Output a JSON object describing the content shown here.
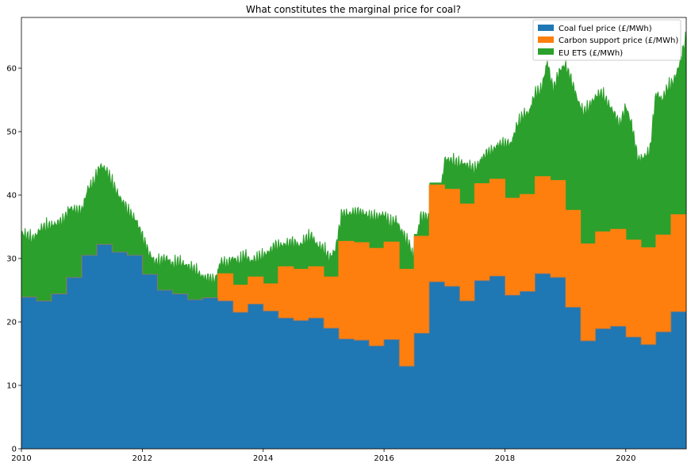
{
  "chart_data": {
    "type": "area",
    "stacked": true,
    "title": "What constitutes the marginal price for coal?",
    "xlabel": "",
    "ylabel": "",
    "xlim": [
      2010.0,
      2021.0
    ],
    "ylim": [
      0,
      68
    ],
    "x_ticks": [
      2010,
      2012,
      2014,
      2016,
      2018,
      2020
    ],
    "x_tick_labels": [
      "2010",
      "2012",
      "2014",
      "2016",
      "2018",
      "2020"
    ],
    "y_ticks": [
      0,
      10,
      20,
      30,
      40,
      50,
      60
    ],
    "y_tick_labels": [
      "0",
      "10",
      "20",
      "30",
      "40",
      "50",
      "60"
    ],
    "grid": false,
    "legend_position": "top-right",
    "step": "post",
    "quarters": [
      2010.0,
      2010.25,
      2010.5,
      2010.75,
      2011.0,
      2011.25,
      2011.5,
      2011.75,
      2012.0,
      2012.25,
      2012.5,
      2012.75,
      2013.0,
      2013.25,
      2013.5,
      2013.75,
      2014.0,
      2014.25,
      2014.5,
      2014.75,
      2015.0,
      2015.25,
      2015.5,
      2015.75,
      2016.0,
      2016.25,
      2016.5,
      2016.75,
      2017.0,
      2017.25,
      2017.5,
      2017.75,
      2018.0,
      2018.25,
      2018.5,
      2018.75,
      2019.0,
      2019.25,
      2019.5,
      2019.75,
      2020.0,
      2020.25,
      2020.5,
      2020.75,
      2021.0
    ],
    "coal_fuel_step": [
      23.9,
      23.3,
      24.4,
      27.0,
      30.5,
      32.2,
      31.0,
      30.5,
      27.5,
      25.0,
      24.4,
      23.5,
      23.8,
      23.3,
      21.5,
      22.8,
      21.7,
      20.6,
      20.2,
      20.6,
      19.0,
      17.3,
      17.1,
      16.2,
      17.2,
      13.0,
      18.2,
      26.3,
      25.6,
      23.3,
      26.5,
      27.2,
      24.2,
      24.8,
      27.6,
      27.0,
      22.3,
      17.0,
      18.9,
      19.3,
      17.6,
      16.4,
      18.4,
      21.6,
      21.6
    ],
    "carbon_support_step": [
      0,
      0,
      0,
      0,
      0,
      0,
      0,
      0,
      0,
      0,
      0,
      0,
      0,
      4.3,
      4.3,
      4.3,
      4.3,
      8.1,
      8.1,
      8.1,
      8.1,
      15.4,
      15.4,
      15.4,
      15.4,
      15.3,
      15.3,
      15.3,
      15.3,
      15.3,
      15.3,
      15.3,
      15.3,
      15.3,
      15.3,
      15.3,
      15.3,
      15.3,
      15.3,
      15.3,
      15.3,
      15.3,
      15.3,
      15.3,
      15.3
    ],
    "total_price_x": [
      2010.0,
      2010.1,
      2010.2,
      2010.3,
      2010.4,
      2010.5,
      2010.6,
      2010.7,
      2010.8,
      2010.9,
      2011.0,
      2011.1,
      2011.2,
      2011.3,
      2011.4,
      2011.5,
      2011.6,
      2011.7,
      2011.8,
      2011.9,
      2012.0,
      2012.1,
      2012.2,
      2012.3,
      2012.4,
      2012.5,
      2012.6,
      2012.7,
      2012.8,
      2012.9,
      2013.0,
      2013.1,
      2013.2,
      2013.3,
      2013.4,
      2013.5,
      2013.6,
      2013.7,
      2013.8,
      2013.9,
      2014.0,
      2014.1,
      2014.2,
      2014.3,
      2014.4,
      2014.5,
      2014.6,
      2014.7,
      2014.8,
      2014.9,
      2015.0,
      2015.1,
      2015.2,
      2015.3,
      2015.4,
      2015.5,
      2015.6,
      2015.7,
      2015.8,
      2015.9,
      2016.0,
      2016.1,
      2016.2,
      2016.3,
      2016.4,
      2016.5,
      2016.6,
      2016.7,
      2016.8,
      2016.9,
      2017.0,
      2017.1,
      2017.2,
      2017.3,
      2017.4,
      2017.5,
      2017.6,
      2017.7,
      2017.8,
      2017.9,
      2018.0,
      2018.1,
      2018.2,
      2018.3,
      2018.4,
      2018.5,
      2018.6,
      2018.7,
      2018.8,
      2018.9,
      2019.0,
      2019.1,
      2019.2,
      2019.3,
      2019.4,
      2019.5,
      2019.6,
      2019.7,
      2019.8,
      2019.9,
      2020.0,
      2020.1,
      2020.2,
      2020.3,
      2020.4,
      2020.5,
      2020.6,
      2020.7,
      2020.8,
      2020.9,
      2021.0
    ],
    "total_price_y": [
      34.0,
      33.5,
      33.0,
      34.5,
      35.0,
      35.2,
      35.5,
      36.0,
      38.0,
      37.5,
      37.5,
      41.0,
      42.0,
      44.5,
      44.0,
      42.0,
      40.0,
      38.5,
      37.0,
      36.0,
      33.5,
      31.0,
      29.5,
      29.5,
      30.0,
      29.0,
      29.5,
      29.0,
      28.5,
      28.0,
      27.0,
      26.8,
      26.5,
      29.5,
      29.0,
      30.0,
      29.5,
      30.5,
      29.5,
      30.0,
      30.5,
      31.0,
      32.0,
      32.0,
      32.3,
      32.5,
      32.0,
      33.0,
      33.5,
      32.0,
      31.5,
      30.0,
      31.5,
      37.0,
      37.0,
      37.2,
      37.2,
      37.0,
      36.5,
      36.5,
      37.0,
      35.5,
      36.0,
      34.0,
      32.5,
      30.0,
      36.5,
      36.5,
      36.5,
      36.0,
      45.5,
      45.5,
      45.0,
      45.0,
      44.5,
      44.0,
      45.5,
      46.5,
      47.0,
      48.0,
      48.0,
      48.0,
      51.0,
      52.5,
      53.0,
      56.0,
      56.5,
      61.0,
      56.5,
      59.5,
      60.5,
      58.0,
      55.0,
      53.0,
      54.0,
      55.5,
      56.0,
      54.5,
      53.0,
      51.0,
      54.0,
      51.0,
      45.5,
      46.0,
      47.0,
      56.0,
      55.0,
      57.0,
      58.0,
      61.0,
      65.0
    ],
    "series": [
      {
        "name": "Coal fuel price (£/MWh)",
        "color": "#1f77b4"
      },
      {
        "name": "Carbon support price (£/MWh)",
        "color": "#ff7f0e"
      },
      {
        "name": "EU ETS (£/MWh)",
        "color": "#2ca02c"
      }
    ]
  }
}
